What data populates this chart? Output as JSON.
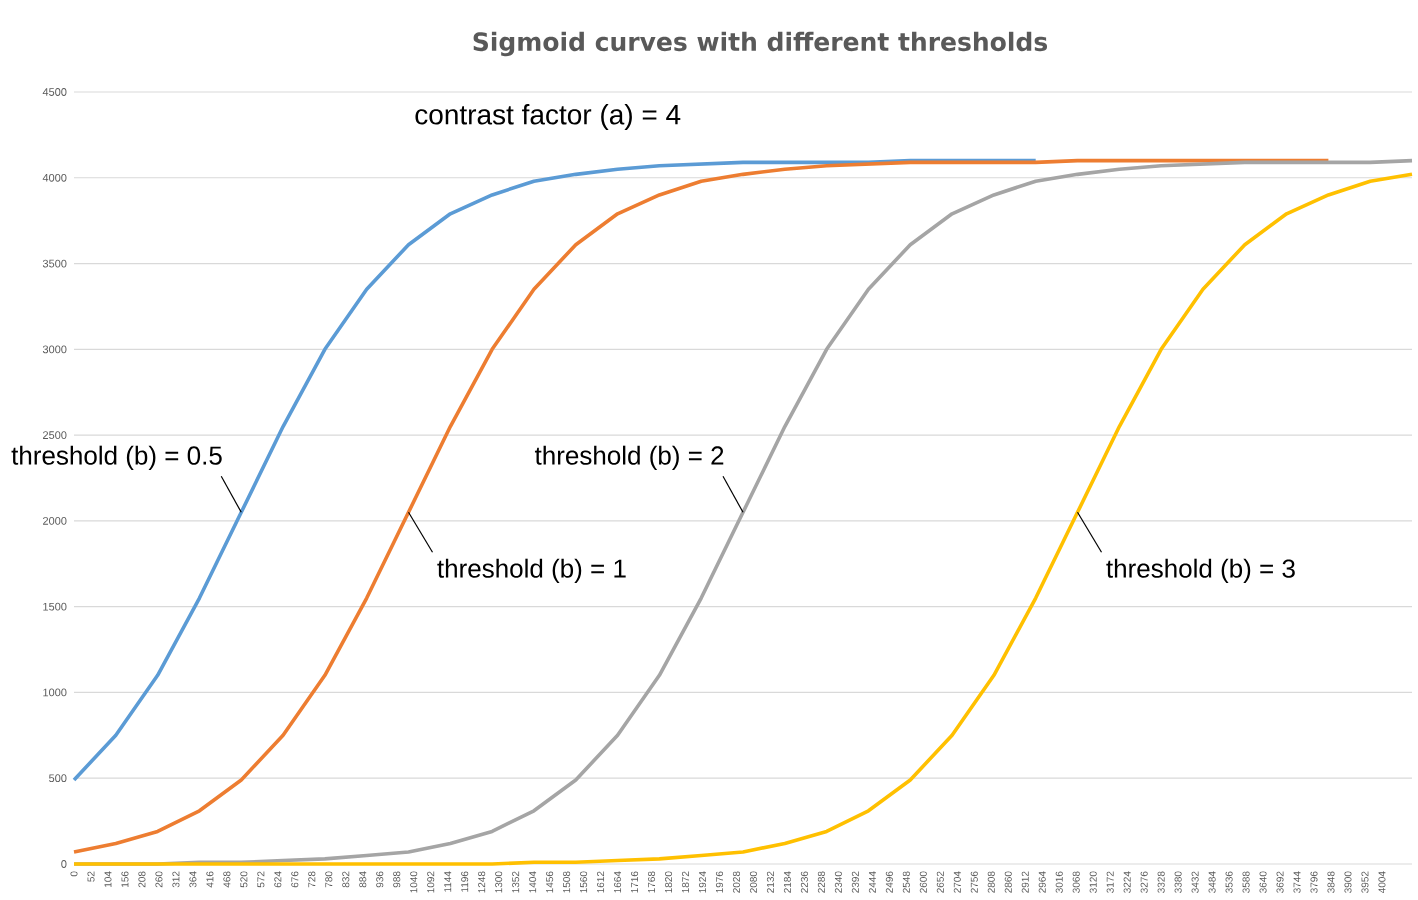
{
  "chart_data": {
    "type": "line",
    "title": "Sigmoid curves with different  thresholds",
    "annotations": [
      "contrast factor (a) = 4",
      {
        "text": "threshold (b) = 0.5",
        "x": 512,
        "y": 2050
      },
      {
        "text": "threshold (b) = 1",
        "x": 1024,
        "y": 2050
      },
      {
        "text": "threshold (b) = 2",
        "x": 2048,
        "y": 2050
      },
      {
        "text": "threshold (b) = 3",
        "x": 3072,
        "y": 2050
      }
    ],
    "x": [
      0,
      128,
      256,
      384,
      512,
      640,
      768,
      896,
      1024,
      1152,
      1280,
      1408,
      1536,
      1664,
      1792,
      1920,
      2048,
      2176,
      2304,
      2432,
      2560,
      2688,
      2816,
      2944,
      3072,
      3200,
      3328,
      3456,
      3584,
      3712,
      3840,
      3968,
      4096
    ],
    "series": [
      {
        "color": "#5b9bd5",
        "values": [
          490,
          750,
          1100,
          1550,
          2050,
          2550,
          3000,
          3350,
          3610,
          3790,
          3900,
          3980,
          4020,
          4050,
          4070,
          4080,
          4090,
          4090,
          4090,
          4090,
          4100,
          4100,
          4100,
          4100,
          null,
          null,
          null,
          null,
          null,
          null,
          null,
          null,
          null
        ]
      },
      {
        "color": "#ed7d31",
        "values": [
          70,
          120,
          190,
          310,
          490,
          750,
          1100,
          1550,
          2050,
          2550,
          3000,
          3350,
          3610,
          3790,
          3900,
          3980,
          4020,
          4050,
          4070,
          4080,
          4090,
          4090,
          4090,
          4090,
          4100,
          4100,
          4100,
          4100,
          4100,
          4100,
          4100,
          null,
          null
        ]
      },
      {
        "color": "#a5a5a5",
        "values": [
          0,
          0,
          0,
          10,
          10,
          20,
          30,
          50,
          70,
          120,
          190,
          310,
          490,
          750,
          1100,
          1550,
          2050,
          2550,
          3000,
          3350,
          3610,
          3790,
          3900,
          3980,
          4020,
          4050,
          4070,
          4080,
          4090,
          4090,
          4090,
          4090,
          4100
        ]
      },
      {
        "color": "#ffc000",
        "values": [
          0,
          0,
          0,
          0,
          0,
          0,
          0,
          0,
          0,
          0,
          0,
          10,
          10,
          20,
          30,
          50,
          70,
          120,
          190,
          310,
          490,
          750,
          1100,
          1550,
          2050,
          2550,
          3000,
          3350,
          3610,
          3790,
          3900,
          3980,
          4020
        ]
      }
    ],
    "xlim": [
      0,
      4096
    ],
    "ylim": [
      0,
      4500
    ],
    "xticks": [
      0,
      52,
      104,
      156,
      208,
      260,
      312,
      364,
      416,
      468,
      520,
      572,
      624,
      676,
      728,
      780,
      832,
      884,
      936,
      988,
      1040,
      1092,
      1144,
      1196,
      1248,
      1300,
      1352,
      1404,
      1456,
      1508,
      1560,
      1612,
      1664,
      1716,
      1768,
      1820,
      1872,
      1924,
      1976,
      2028,
      2080,
      2132,
      2184,
      2236,
      2288,
      2340,
      2392,
      2444,
      2496,
      2548,
      2600,
      2652,
      2704,
      2756,
      2808,
      2860,
      2912,
      2964,
      3016,
      3068,
      3120,
      3172,
      3224,
      3276,
      3328,
      3380,
      3432,
      3484,
      3536,
      3588,
      3640,
      3692,
      3744,
      3796,
      3848,
      3900,
      3952,
      4004
    ],
    "yticks": [
      0,
      500,
      1000,
      1500,
      2000,
      2500,
      3000,
      3500,
      4000,
      4500
    ],
    "grid": "y"
  }
}
